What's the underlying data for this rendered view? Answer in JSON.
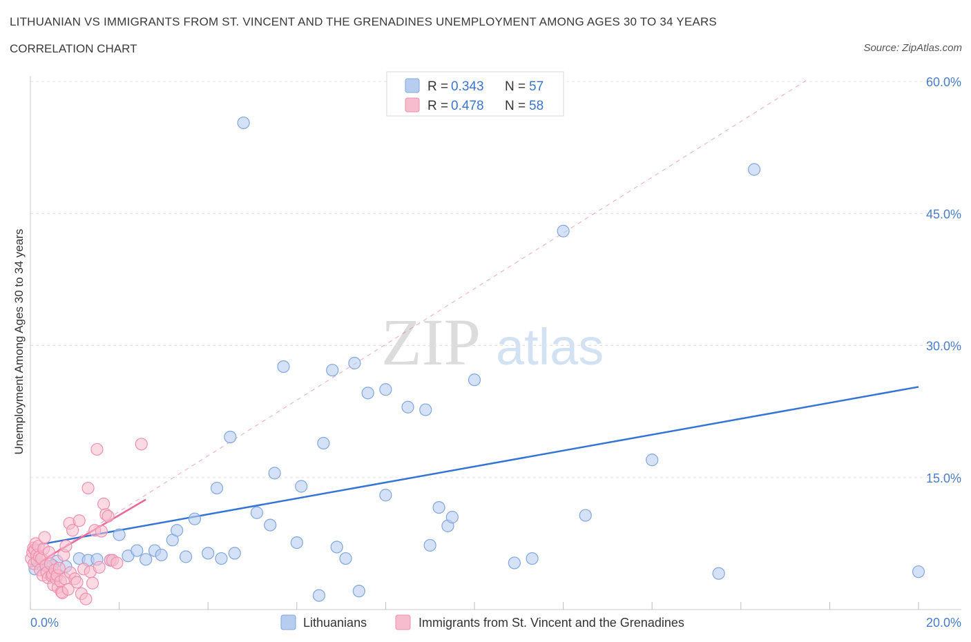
{
  "header": {
    "title": "LITHUANIAN VS IMMIGRANTS FROM ST. VINCENT AND THE GRENADINES UNEMPLOYMENT AMONG AGES 30 TO 34 YEARS",
    "subtitle": "CORRELATION CHART",
    "source": "Source: ZipAtlas.com"
  },
  "watermark": {
    "zip": "ZIP",
    "atlas": "atlas"
  },
  "colors": {
    "blue_fill": "#b7cdf0",
    "blue_stroke": "#7fa6e0",
    "blue_line": "#3474d4",
    "pink_fill": "#f7bccd",
    "pink_stroke": "#ee8fae",
    "pink_line": "#e8689a",
    "grid": "#e3e3e3",
    "tick_text": "#4a7cc7"
  },
  "stats_legend": {
    "rows": [
      {
        "r_label": "R = ",
        "r_value": "0.343",
        "n_label": "N = ",
        "n_value": "57"
      },
      {
        "r_label": "R = ",
        "r_value": "0.478",
        "n_label": "N = ",
        "n_value": "58"
      }
    ]
  },
  "chart_data": {
    "type": "scatter",
    "title": "LITHUANIAN VS IMMIGRANTS FROM ST. VINCENT AND THE GRENADINES UNEMPLOYMENT AMONG AGES 30 TO 34 YEARS",
    "xlabel": "",
    "ylabel": "Unemployment Among Ages 30 to 34 years",
    "xlim": [
      0,
      20
    ],
    "ylim": [
      0,
      60
    ],
    "x_tick_labels": [
      "0.0%",
      "20.0%"
    ],
    "y_ticks": [
      15,
      30,
      45,
      60
    ],
    "y_tick_labels": [
      "15.0%",
      "30.0%",
      "45.0%",
      "60.0%"
    ],
    "grid": true,
    "legend_position": "top-center",
    "series": [
      {
        "name": "Lithuanians",
        "R": 0.343,
        "N": 57,
        "trend": {
          "x": [
            0,
            20
          ],
          "y": [
            7.2,
            25.3
          ],
          "style": "solid"
        },
        "points": [
          [
            0.2,
            5.2
          ],
          [
            0.4,
            4.8
          ],
          [
            0.6,
            5.5
          ],
          [
            0.8,
            4.9
          ],
          [
            1.1,
            5.8
          ],
          [
            1.3,
            5.6
          ],
          [
            1.5,
            5.7
          ],
          [
            1.8,
            5.6
          ],
          [
            2.0,
            8.5
          ],
          [
            2.2,
            6.1
          ],
          [
            2.4,
            6.7
          ],
          [
            2.6,
            5.7
          ],
          [
            2.8,
            6.7
          ],
          [
            2.95,
            6.2
          ],
          [
            3.2,
            7.9
          ],
          [
            3.3,
            9.0
          ],
          [
            3.5,
            6.0
          ],
          [
            3.7,
            10.3
          ],
          [
            4.0,
            6.4
          ],
          [
            4.2,
            13.8
          ],
          [
            4.3,
            5.8
          ],
          [
            4.5,
            19.6
          ],
          [
            4.6,
            6.4
          ],
          [
            4.8,
            55.3
          ],
          [
            5.1,
            11.0
          ],
          [
            5.4,
            9.6
          ],
          [
            5.5,
            15.5
          ],
          [
            5.7,
            27.6
          ],
          [
            6.0,
            7.6
          ],
          [
            6.1,
            14.0
          ],
          [
            6.5,
            1.6
          ],
          [
            6.6,
            18.9
          ],
          [
            6.8,
            27.2
          ],
          [
            6.9,
            7.1
          ],
          [
            7.1,
            5.8
          ],
          [
            7.3,
            28.0
          ],
          [
            7.4,
            2.1
          ],
          [
            7.6,
            24.6
          ],
          [
            8.0,
            25.0
          ],
          [
            8.0,
            13.0
          ],
          [
            8.5,
            23.0
          ],
          [
            8.9,
            22.7
          ],
          [
            9.0,
            7.3
          ],
          [
            9.2,
            11.6
          ],
          [
            9.4,
            9.5
          ],
          [
            9.5,
            10.5
          ],
          [
            10.0,
            26.1
          ],
          [
            10.9,
            5.3
          ],
          [
            11.3,
            5.8
          ],
          [
            12.0,
            43.0
          ],
          [
            12.5,
            10.7
          ],
          [
            14.0,
            17.0
          ],
          [
            15.5,
            4.1
          ],
          [
            16.3,
            50.0
          ],
          [
            20.0,
            4.3
          ],
          [
            0.1,
            4.6
          ],
          [
            0.5,
            5.0
          ]
        ]
      },
      {
        "name": "Immigrants from St. Vincent and the Grenadines",
        "R": 0.478,
        "N": 58,
        "trend": {
          "x": [
            0,
            2.6
          ],
          "y": [
            4.8,
            12.5
          ],
          "style": "solid"
        },
        "trend_ext": {
          "x": [
            0,
            17.5
          ],
          "y": [
            4.8,
            60.2
          ],
          "style": "dashed"
        },
        "points": [
          [
            0.02,
            5.8
          ],
          [
            0.05,
            6.5
          ],
          [
            0.07,
            7.0
          ],
          [
            0.08,
            5.2
          ],
          [
            0.1,
            6.8
          ],
          [
            0.12,
            7.5
          ],
          [
            0.14,
            6.2
          ],
          [
            0.15,
            5.5
          ],
          [
            0.18,
            7.2
          ],
          [
            0.2,
            6.0
          ],
          [
            0.22,
            4.5
          ],
          [
            0.25,
            5.8
          ],
          [
            0.28,
            3.9
          ],
          [
            0.3,
            6.9
          ],
          [
            0.32,
            8.2
          ],
          [
            0.35,
            5.0
          ],
          [
            0.37,
            4.2
          ],
          [
            0.4,
            3.6
          ],
          [
            0.42,
            6.5
          ],
          [
            0.45,
            5.2
          ],
          [
            0.48,
            3.8
          ],
          [
            0.5,
            4.0
          ],
          [
            0.52,
            2.8
          ],
          [
            0.55,
            4.5
          ],
          [
            0.58,
            3.5
          ],
          [
            0.6,
            3.9
          ],
          [
            0.62,
            2.5
          ],
          [
            0.65,
            4.7
          ],
          [
            0.68,
            3.2
          ],
          [
            0.7,
            2.0
          ],
          [
            0.72,
            1.9
          ],
          [
            0.75,
            6.2
          ],
          [
            0.78,
            3.5
          ],
          [
            0.8,
            7.2
          ],
          [
            0.85,
            2.3
          ],
          [
            0.88,
            9.8
          ],
          [
            0.9,
            4.2
          ],
          [
            0.95,
            9.0
          ],
          [
            1.0,
            3.5
          ],
          [
            1.05,
            3.1
          ],
          [
            1.1,
            10.1
          ],
          [
            1.15,
            1.8
          ],
          [
            1.2,
            4.6
          ],
          [
            1.25,
            1.2
          ],
          [
            1.3,
            13.8
          ],
          [
            1.35,
            4.3
          ],
          [
            1.4,
            3.0
          ],
          [
            1.45,
            9.0
          ],
          [
            1.5,
            18.2
          ],
          [
            1.55,
            4.8
          ],
          [
            1.6,
            8.9
          ],
          [
            1.65,
            12.0
          ],
          [
            1.7,
            10.8
          ],
          [
            1.75,
            10.6
          ],
          [
            1.8,
            5.6
          ],
          [
            1.85,
            5.6
          ],
          [
            1.95,
            5.3
          ],
          [
            2.5,
            18.8
          ]
        ]
      }
    ]
  },
  "bottom_legend": {
    "items": [
      {
        "label": "Lithuanians"
      },
      {
        "label": "Immigrants from St. Vincent and the Grenadines"
      }
    ]
  }
}
